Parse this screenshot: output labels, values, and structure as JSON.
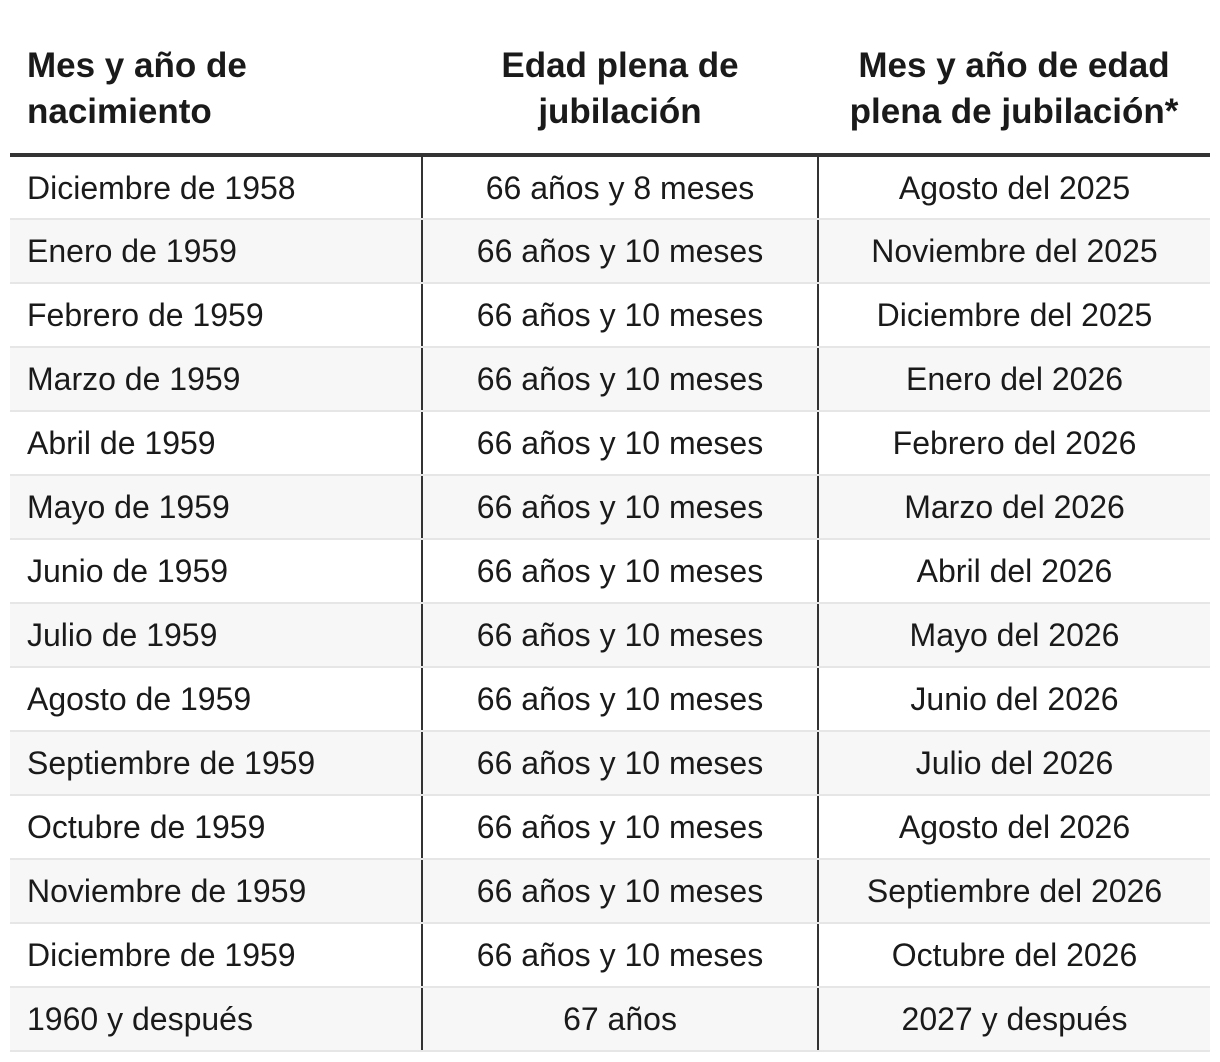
{
  "table": {
    "headers": [
      [
        "Mes y año de",
        "nacimiento"
      ],
      [
        "Edad plena de",
        "jubilación"
      ],
      [
        "Mes y año de edad",
        "plena de jubilación*"
      ]
    ],
    "rows": [
      [
        "Diciembre de 1958",
        "66 años y 8 meses",
        "Agosto del 2025"
      ],
      [
        "Enero de 1959",
        "66 años y 10 meses",
        "Noviembre del 2025"
      ],
      [
        "Febrero de 1959",
        "66 años y 10 meses",
        "Diciembre del 2025"
      ],
      [
        "Marzo de 1959",
        "66 años y 10 meses",
        "Enero del 2026"
      ],
      [
        "Abril de 1959",
        "66 años y 10 meses",
        "Febrero del 2026"
      ],
      [
        "Mayo de 1959",
        "66 años y 10 meses",
        "Marzo del 2026"
      ],
      [
        "Junio de 1959",
        "66 años y 10 meses",
        "Abril del 2026"
      ],
      [
        "Julio de 1959",
        "66 años y 10 meses",
        "Mayo del 2026"
      ],
      [
        "Agosto de 1959",
        "66 años y 10 meses",
        "Junio del 2026"
      ],
      [
        "Septiembre de 1959",
        "66 años y 10 meses",
        "Julio del 2026"
      ],
      [
        "Octubre de 1959",
        "66 años y 10 meses",
        "Agosto del 2026"
      ],
      [
        "Noviembre de 1959",
        "66 años y 10 meses",
        "Septiembre del 2026"
      ],
      [
        "Diciembre de 1959",
        "66 años y 10 meses",
        "Octubre del 2026"
      ],
      [
        "1960 y después",
        "67 años",
        "2027 y después"
      ]
    ]
  }
}
